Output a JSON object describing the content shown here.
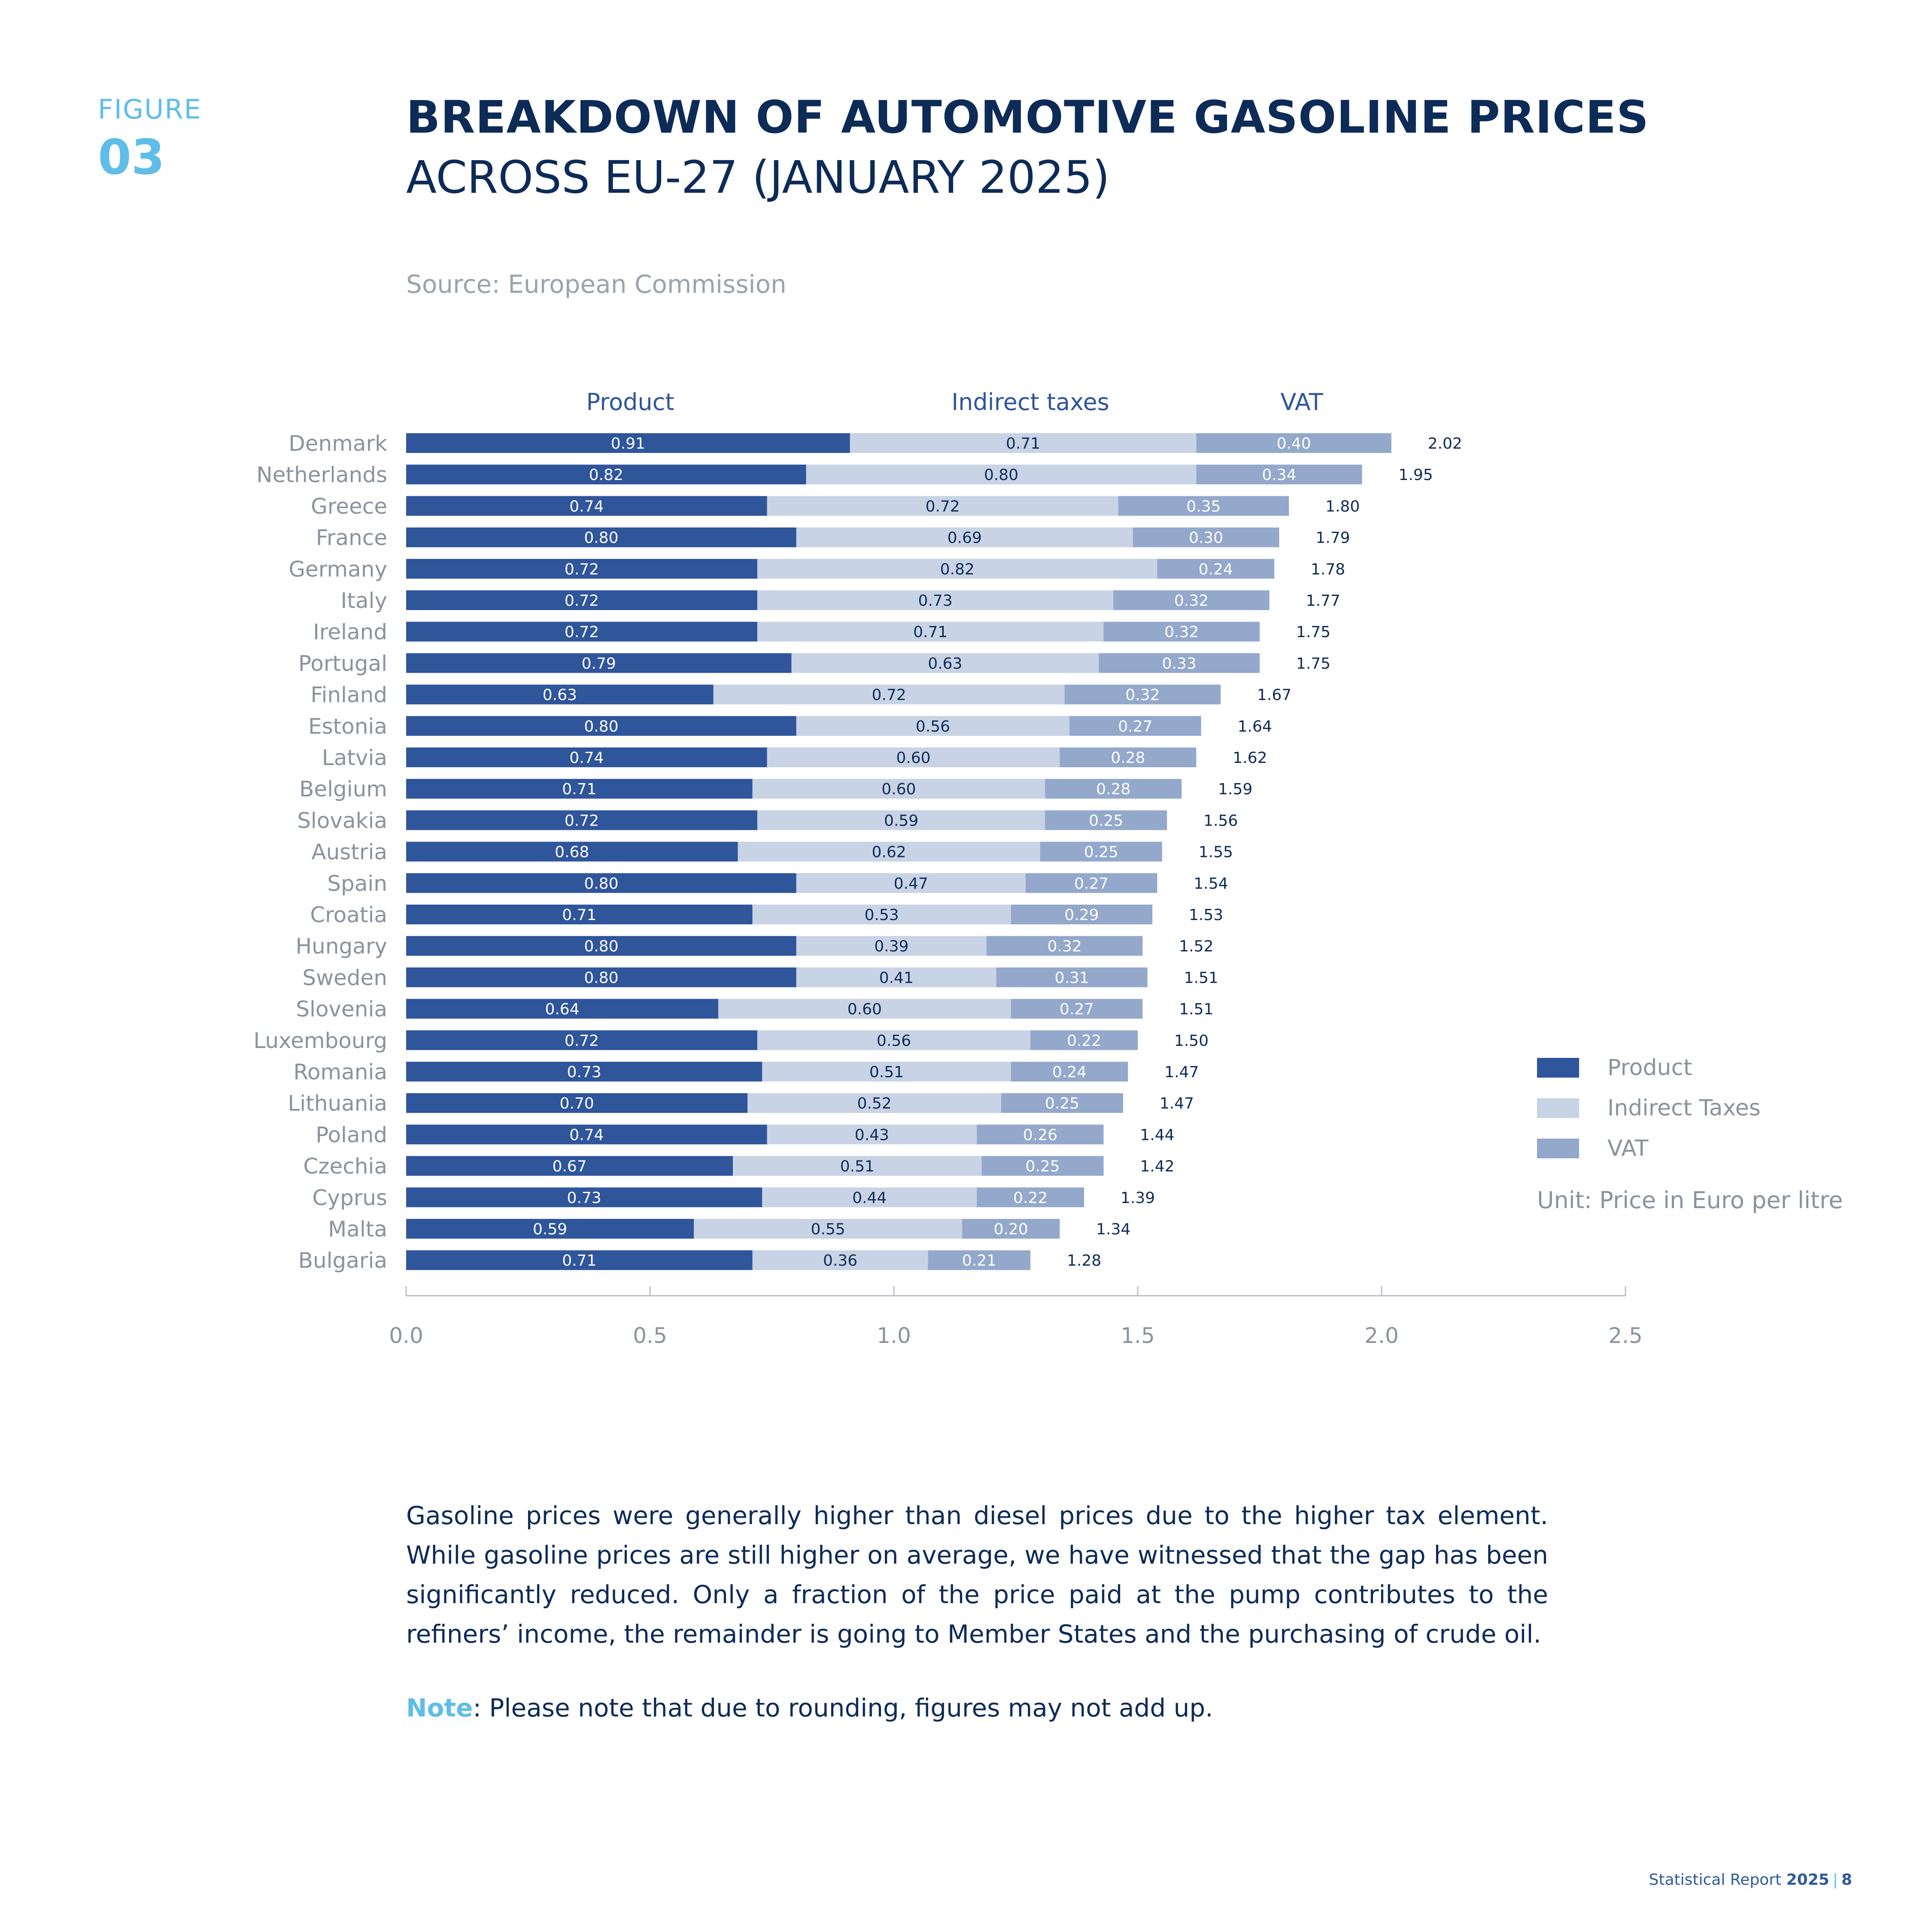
{
  "figure": {
    "label": "FIGURE",
    "number": "03"
  },
  "title": {
    "bold": "BREAKDOWN OF AUTOMOTIVE GASOLINE PRICES",
    "light": "ACROSS EU-27 (JANUARY 2025)"
  },
  "source": "Source: European Commission",
  "legend": {
    "product": "Product",
    "indirect": "Indirect Taxes",
    "vat": "VAT",
    "unit": "Unit: Price in Euro per litre"
  },
  "colors": {
    "product": "#2f559b",
    "indirect": "#c8d3e5",
    "vat": "#93a8cb",
    "title": "#0d2b57",
    "accent": "#5fbde8"
  },
  "body": {
    "paragraph": "Gasoline prices were generally higher than diesel prices due to the higher tax element. While gasoline prices are still higher on average, we have witnessed that the gap has been significantly reduced. Only a fraction of the price paid at the pump contributes to the refiners’ income, the remainder is going to Member States and the purchasing of crude oil.",
    "note_label": "Note",
    "note_text": ": Please note that due to rounding, figures may not add up."
  },
  "footer": {
    "report": "Statistical Report",
    "year": "2025",
    "separator": "|",
    "page": "8"
  },
  "chart_data": {
    "type": "bar",
    "orientation": "horizontal",
    "stacked": true,
    "series_headers": [
      "Product",
      "Indirect taxes",
      "VAT"
    ],
    "categories": [
      "Denmark",
      "Netherlands",
      "Greece",
      "France",
      "Germany",
      "Italy",
      "Ireland",
      "Portugal",
      "Finland",
      "Estonia",
      "Latvia",
      "Belgium",
      "Slovakia",
      "Austria",
      "Spain",
      "Croatia",
      "Hungary",
      "Sweden",
      "Slovenia",
      "Luxembourg",
      "Romania",
      "Lithuania",
      "Poland",
      "Czechia",
      "Cyprus",
      "Malta",
      "Bulgaria"
    ],
    "series": [
      {
        "name": "Product",
        "values": [
          0.91,
          0.82,
          0.74,
          0.8,
          0.72,
          0.72,
          0.72,
          0.79,
          0.63,
          0.8,
          0.74,
          0.71,
          0.72,
          0.68,
          0.8,
          0.71,
          0.8,
          0.8,
          0.64,
          0.72,
          0.73,
          0.7,
          0.74,
          0.67,
          0.73,
          0.59,
          0.71
        ]
      },
      {
        "name": "Indirect Taxes",
        "values": [
          0.71,
          0.8,
          0.72,
          0.69,
          0.82,
          0.73,
          0.71,
          0.63,
          0.72,
          0.56,
          0.6,
          0.6,
          0.59,
          0.62,
          0.47,
          0.53,
          0.39,
          0.41,
          0.6,
          0.56,
          0.51,
          0.52,
          0.43,
          0.51,
          0.44,
          0.55,
          0.36
        ]
      },
      {
        "name": "VAT",
        "values": [
          0.4,
          0.34,
          0.35,
          0.3,
          0.24,
          0.32,
          0.32,
          0.33,
          0.32,
          0.27,
          0.28,
          0.28,
          0.25,
          0.25,
          0.27,
          0.29,
          0.32,
          0.31,
          0.27,
          0.22,
          0.24,
          0.25,
          0.26,
          0.25,
          0.22,
          0.2,
          0.21
        ]
      }
    ],
    "totals": [
      2.02,
      1.95,
      1.8,
      1.79,
      1.78,
      1.77,
      1.75,
      1.75,
      1.67,
      1.64,
      1.62,
      1.59,
      1.56,
      1.55,
      1.54,
      1.53,
      1.52,
      1.51,
      1.51,
      1.5,
      1.47,
      1.47,
      1.44,
      1.42,
      1.39,
      1.34,
      1.28
    ],
    "xlim": [
      0,
      2.5
    ],
    "xticks": [
      "0.0",
      "0.5",
      "1.0",
      "1.5",
      "2.0",
      "2.5"
    ],
    "grid": false,
    "legend_position": "right"
  }
}
